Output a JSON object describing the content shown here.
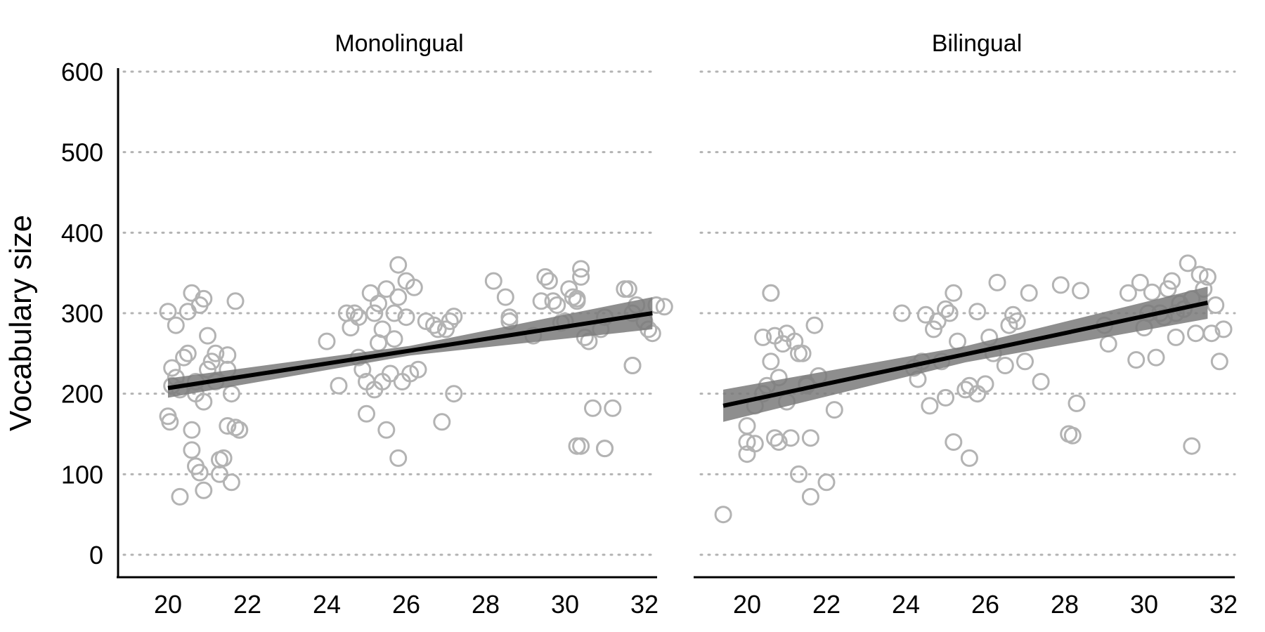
{
  "chart_data": {
    "type": "scatter",
    "ylabel": "Vocabulary size",
    "xlabel": "",
    "ylim": [
      0,
      600
    ],
    "yticks": [
      "0",
      "100",
      "200",
      "300",
      "400",
      "500",
      "600"
    ],
    "xticks": [
      "20",
      "22",
      "24",
      "26",
      "28",
      "30",
      "32"
    ],
    "grid": "horizontal dotted",
    "colors": {
      "points": "#b3b3b3",
      "ribbon": "#7a7a7a",
      "line": "#000000",
      "grid": "#b3b3b3"
    },
    "panels": [
      {
        "title": "Monolingual",
        "fit": {
          "x": [
            20,
            32.2
          ],
          "y": [
            207,
            300
          ],
          "ci_half_width": [
            12,
            20
          ]
        },
        "points": [
          [
            20.0,
            302
          ],
          [
            20.1,
            232
          ],
          [
            20.2,
            285
          ],
          [
            20.0,
            172
          ],
          [
            20.05,
            165
          ],
          [
            20.1,
            210
          ],
          [
            20.2,
            220
          ],
          [
            20.3,
            205
          ],
          [
            20.4,
            245
          ],
          [
            20.5,
            302
          ],
          [
            20.5,
            250
          ],
          [
            20.6,
            325
          ],
          [
            20.7,
            215
          ],
          [
            20.8,
            310
          ],
          [
            20.9,
            318
          ],
          [
            20.6,
            155
          ],
          [
            20.6,
            130
          ],
          [
            20.7,
            110
          ],
          [
            20.8,
            102
          ],
          [
            20.9,
            80
          ],
          [
            21.0,
            272
          ],
          [
            21.1,
            240
          ],
          [
            21.2,
            215
          ],
          [
            21.2,
            250
          ],
          [
            21.3,
            118
          ],
          [
            21.4,
            120
          ],
          [
            21.3,
            100
          ],
          [
            21.5,
            248
          ],
          [
            21.5,
            230
          ],
          [
            21.6,
            200
          ],
          [
            21.5,
            160
          ],
          [
            21.6,
            90
          ],
          [
            21.7,
            158
          ],
          [
            21.8,
            155
          ],
          [
            21.8,
            155
          ],
          [
            21.7,
            315
          ],
          [
            20.3,
            72
          ],
          [
            20.7,
            200
          ],
          [
            20.9,
            190
          ],
          [
            21.0,
            230
          ],
          [
            24.0,
            265
          ],
          [
            24.3,
            210
          ],
          [
            24.5,
            300
          ],
          [
            24.6,
            282
          ],
          [
            24.7,
            300
          ],
          [
            24.8,
            295
          ],
          [
            24.8,
            245
          ],
          [
            24.9,
            230
          ],
          [
            25.0,
            215
          ],
          [
            25.0,
            175
          ],
          [
            25.1,
            325
          ],
          [
            25.2,
            205
          ],
          [
            25.2,
            300
          ],
          [
            25.3,
            312
          ],
          [
            25.3,
            263
          ],
          [
            25.4,
            280
          ],
          [
            25.4,
            215
          ],
          [
            25.5,
            330
          ],
          [
            25.5,
            155
          ],
          [
            25.6,
            225
          ],
          [
            25.7,
            300
          ],
          [
            25.7,
            268
          ],
          [
            25.8,
            360
          ],
          [
            25.8,
            320
          ],
          [
            25.9,
            215
          ],
          [
            26.0,
            340
          ],
          [
            26.0,
            295
          ],
          [
            26.1,
            225
          ],
          [
            26.2,
            332
          ],
          [
            26.3,
            230
          ],
          [
            25.8,
            120
          ],
          [
            26.5,
            290
          ],
          [
            26.7,
            285
          ],
          [
            26.8,
            280
          ],
          [
            27.0,
            280
          ],
          [
            27.1,
            290
          ],
          [
            27.2,
            296
          ],
          [
            27.2,
            200
          ],
          [
            26.9,
            165
          ],
          [
            28.2,
            340
          ],
          [
            28.5,
            320
          ],
          [
            28.6,
            295
          ],
          [
            28.6,
            290
          ],
          [
            29.2,
            272
          ],
          [
            29.4,
            315
          ],
          [
            29.5,
            345
          ],
          [
            29.6,
            340
          ],
          [
            29.7,
            315
          ],
          [
            29.8,
            310
          ],
          [
            29.9,
            288
          ],
          [
            30.0,
            290
          ],
          [
            30.1,
            330
          ],
          [
            30.2,
            320
          ],
          [
            30.3,
            318
          ],
          [
            30.3,
            315
          ],
          [
            30.4,
            355
          ],
          [
            30.4,
            345
          ],
          [
            30.5,
            270
          ],
          [
            30.6,
            265
          ],
          [
            30.3,
            135
          ],
          [
            30.4,
            135
          ],
          [
            30.7,
            182
          ],
          [
            31.0,
            132
          ],
          [
            31.0,
            132
          ],
          [
            31.2,
            182
          ],
          [
            31.5,
            330
          ],
          [
            31.6,
            330
          ],
          [
            31.7,
            300
          ],
          [
            31.8,
            310
          ],
          [
            31.7,
            235
          ],
          [
            31.7,
            235
          ],
          [
            32.0,
            290
          ],
          [
            32.1,
            280
          ],
          [
            32.2,
            275
          ],
          [
            32.3,
            310
          ],
          [
            32.5,
            308
          ],
          [
            30.9,
            280
          ],
          [
            31.0,
            295
          ]
        ]
      },
      {
        "title": "Bilingual",
        "fit": {
          "x": [
            19.4,
            31.6
          ],
          "y": [
            185,
            313
          ],
          "ci_half_width": [
            20,
            20
          ]
        },
        "points": [
          [
            19.4,
            50
          ],
          [
            20.0,
            160
          ],
          [
            20.0,
            140
          ],
          [
            20.0,
            125
          ],
          [
            20.2,
            185
          ],
          [
            20.2,
            138
          ],
          [
            20.4,
            270
          ],
          [
            20.4,
            200
          ],
          [
            20.6,
            325
          ],
          [
            20.6,
            325
          ],
          [
            20.6,
            240
          ],
          [
            20.7,
            272
          ],
          [
            20.7,
            145
          ],
          [
            20.8,
            140
          ],
          [
            20.9,
            262
          ],
          [
            21.0,
            275
          ],
          [
            21.0,
            190
          ],
          [
            21.1,
            145
          ],
          [
            21.2,
            265
          ],
          [
            21.3,
            250
          ],
          [
            21.3,
            100
          ],
          [
            21.4,
            250
          ],
          [
            21.5,
            212
          ],
          [
            21.5,
            210
          ],
          [
            21.6,
            145
          ],
          [
            21.7,
            285
          ],
          [
            21.8,
            222
          ],
          [
            21.6,
            72
          ],
          [
            22.0,
            90
          ],
          [
            22.2,
            180
          ],
          [
            20.5,
            210
          ],
          [
            20.8,
            220
          ],
          [
            23.9,
            300
          ],
          [
            24.2,
            232
          ],
          [
            24.3,
            218
          ],
          [
            24.4,
            240
          ],
          [
            24.5,
            298
          ],
          [
            24.6,
            185
          ],
          [
            24.7,
            280
          ],
          [
            24.8,
            290
          ],
          [
            24.9,
            240
          ],
          [
            25.0,
            305
          ],
          [
            25.1,
            300
          ],
          [
            25.0,
            195
          ],
          [
            25.2,
            325
          ],
          [
            25.2,
            140
          ],
          [
            25.3,
            265
          ],
          [
            25.5,
            205
          ],
          [
            25.6,
            120
          ],
          [
            25.6,
            210
          ],
          [
            25.8,
            200
          ],
          [
            25.8,
            302
          ],
          [
            26.0,
            212
          ],
          [
            26.2,
            250
          ],
          [
            26.3,
            338
          ],
          [
            26.5,
            235
          ],
          [
            26.6,
            285
          ],
          [
            26.7,
            298
          ],
          [
            26.8,
            290
          ],
          [
            27.0,
            240
          ],
          [
            27.1,
            325
          ],
          [
            27.4,
            215
          ],
          [
            26.1,
            270
          ],
          [
            27.9,
            335
          ],
          [
            28.1,
            150
          ],
          [
            28.2,
            148
          ],
          [
            28.3,
            188
          ],
          [
            28.4,
            328
          ],
          [
            29.0,
            285
          ],
          [
            29.1,
            262
          ],
          [
            29.6,
            325
          ],
          [
            29.8,
            242
          ],
          [
            29.9,
            338
          ],
          [
            30.0,
            282
          ],
          [
            30.1,
            300
          ],
          [
            30.2,
            326
          ],
          [
            30.3,
            245
          ],
          [
            30.5,
            295
          ],
          [
            30.6,
            330
          ],
          [
            30.7,
            340
          ],
          [
            30.8,
            270
          ],
          [
            30.9,
            312
          ],
          [
            31.0,
            305
          ],
          [
            31.1,
            362
          ],
          [
            31.2,
            318
          ],
          [
            31.3,
            275
          ],
          [
            31.4,
            348
          ],
          [
            31.5,
            330
          ],
          [
            31.2,
            135
          ],
          [
            31.6,
            345
          ],
          [
            31.7,
            275
          ],
          [
            31.8,
            310
          ],
          [
            31.9,
            240
          ],
          [
            32.0,
            280
          ],
          [
            30.4,
            300
          ],
          [
            30.8,
            300
          ]
        ]
      }
    ]
  }
}
